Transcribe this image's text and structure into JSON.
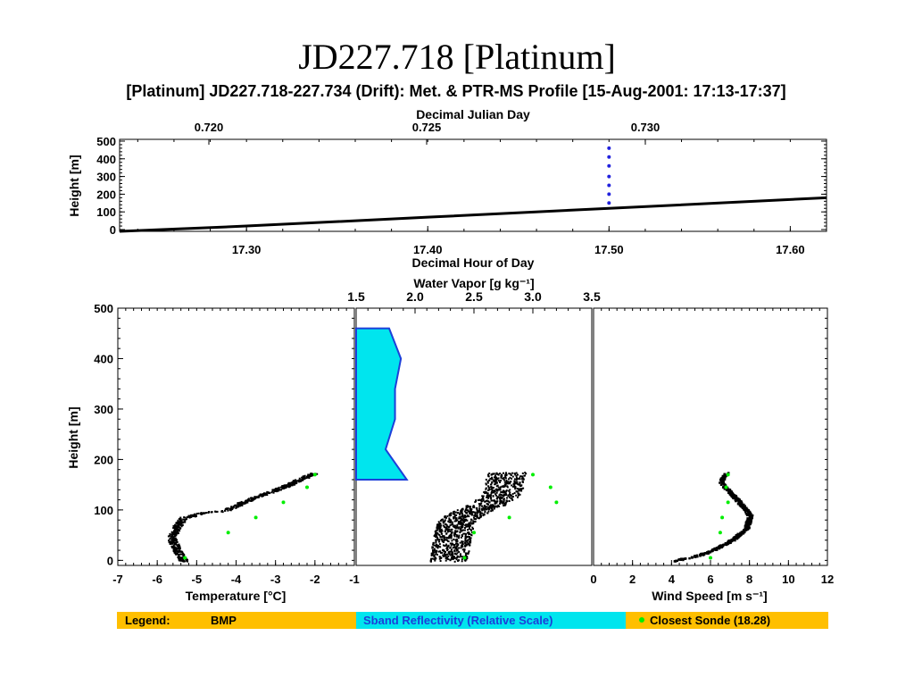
{
  "slide_title": "JD227.718 [Platinum]",
  "figure_title": "[Platinum] JD227.718-227.734 (Drift): Met. & PTR-MS Profile [15-Aug-2001: 17:13-17:37]",
  "colors": {
    "track": "#000000",
    "sonde": "#00ee00",
    "reflectivity_fill": "#00e5ee",
    "reflectivity_edge": "#1c3fd9",
    "legend_bar": "#ffbf00",
    "marker": "#2222dd"
  },
  "legend": {
    "label": "Legend:",
    "bmp": "BMP",
    "sband": "Sband Reflectivity (Relative Scale)",
    "sonde": "Closest Sonde (18.28)"
  },
  "chart_data": [
    {
      "type": "line",
      "id": "time-height",
      "xlabel": "Decimal Hour of Day",
      "x2label": "Decimal Julian Day",
      "ylabel": "Height [m]",
      "xlim": [
        17.23,
        17.62
      ],
      "ylim": [
        -10,
        510
      ],
      "xticks": [
        17.3,
        17.4,
        17.5,
        17.6
      ],
      "xtick_labels": [
        "17.30",
        "17.40",
        "17.50",
        "17.60"
      ],
      "x2ticks": [
        0.72,
        0.725,
        0.73
      ],
      "x2tick_labels": [
        "0.720",
        "0.725",
        "0.730"
      ],
      "yticks": [
        0,
        100,
        200,
        300,
        400,
        500
      ],
      "ytick_labels": [
        "0",
        "100",
        "200",
        "300",
        "400",
        "500"
      ],
      "series": [
        {
          "x": [
            17.23,
            17.3,
            17.4,
            17.5,
            17.62
          ],
          "y": [
            -10,
            20,
            70,
            120,
            180
          ]
        }
      ],
      "markers": {
        "x": 17.5,
        "y": [
          150,
          200,
          250,
          300,
          360,
          410,
          460
        ]
      }
    },
    {
      "type": "scatter",
      "id": "temperature",
      "xlabel": "Temperature [°C]",
      "ylabel": "Height [m]",
      "xlim": [
        -7,
        -1
      ],
      "ylim": [
        -10,
        500
      ],
      "xticks": [
        -7,
        -6,
        -5,
        -4,
        -3,
        -2,
        -1
      ],
      "xtick_labels": [
        "-7",
        "-6",
        "-5",
        "-4",
        "-3",
        "-2",
        "-1"
      ],
      "yticks": [
        0,
        100,
        200,
        300,
        400,
        500
      ],
      "ytick_labels": [
        "0",
        "100",
        "200",
        "300",
        "400",
        "500"
      ],
      "series": [
        {
          "x": [
            -5.35,
            -5.5,
            -5.65,
            -5.5,
            -5.35,
            -4.9,
            -4.3,
            -4.0,
            -3.6,
            -3.2,
            -2.7,
            -2.3,
            -2.0
          ],
          "y": [
            0,
            20,
            45,
            70,
            85,
            95,
            100,
            110,
            125,
            135,
            150,
            165,
            175
          ]
        }
      ],
      "sonde": {
        "x": [
          -2.0,
          -2.2,
          -2.8,
          -3.5,
          -4.2,
          -5.3
        ],
        "y": [
          170,
          145,
          115,
          85,
          55,
          5
        ]
      }
    },
    {
      "type": "scatter",
      "id": "water-vapor",
      "x2label": "Water Vapor [g kg⁻¹]",
      "x2lim": [
        1.5,
        3.5
      ],
      "x2ticks": [
        1.5,
        2.0,
        2.5,
        3.0,
        3.5
      ],
      "x2tick_labels": [
        "1.5",
        "2.0",
        "2.5",
        "3.0",
        "3.5"
      ],
      "ylim": [
        -10,
        500
      ],
      "series": [
        {
          "x": [
            2.28,
            2.3,
            2.32,
            2.35,
            2.45,
            2.6,
            2.7,
            2.75,
            2.75,
            2.78
          ],
          "y": [
            5,
            30,
            60,
            80,
            95,
            110,
            125,
            140,
            160,
            175
          ]
        }
      ],
      "sonde": {
        "x": [
          3.0,
          3.15,
          3.2,
          2.8,
          2.5,
          2.42
        ],
        "y": [
          170,
          145,
          115,
          85,
          55,
          5
        ]
      },
      "reflectivity": {
        "y": [
          160,
          220,
          280,
          340,
          400,
          460
        ],
        "x": [
          1.93,
          1.75,
          1.83,
          1.83,
          1.88,
          1.78
        ]
      }
    },
    {
      "type": "line",
      "id": "wind-speed",
      "xlabel": "Wind Speed [m s⁻¹]",
      "xlim": [
        0,
        12
      ],
      "ylim": [
        -10,
        500
      ],
      "xticks": [
        0,
        2,
        4,
        6,
        8,
        10,
        12
      ],
      "xtick_labels": [
        "0",
        "2",
        "4",
        "6",
        "8",
        "10",
        "12"
      ],
      "series": [
        {
          "x": [
            4.0,
            5.0,
            6.0,
            7.0,
            7.8,
            8.0,
            7.6,
            7.0,
            6.5,
            6.6,
            6.8
          ],
          "y": [
            0,
            8,
            20,
            40,
            65,
            90,
            110,
            135,
            155,
            165,
            175
          ]
        }
      ],
      "sonde": {
        "x": [
          6.9,
          6.8,
          6.9,
          6.6,
          6.5,
          6.0
        ],
        "y": [
          170,
          145,
          115,
          85,
          55,
          5
        ]
      }
    }
  ]
}
